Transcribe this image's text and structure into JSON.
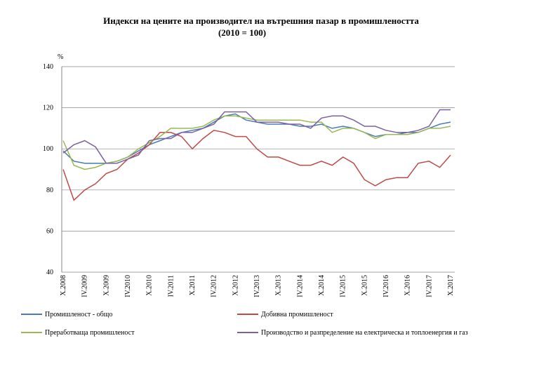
{
  "chart_data": {
    "type": "line",
    "title": "Индекси на цените на производител на вътрешния пазар в промишлеността",
    "subtitle": "(2010 = 100)",
    "y_label": "%",
    "categories": [
      "X.2008",
      null,
      "IV.2009",
      null,
      "X.2009",
      null,
      "IV.2010",
      null,
      "X.2010",
      null,
      "IV.2011",
      null,
      "X.2011",
      null,
      "IV.2012",
      null,
      "X.2012",
      null,
      "IV.2013",
      null,
      "X.2013",
      null,
      "IV.2014",
      null,
      "X.2014",
      null,
      "IV.2015",
      null,
      "X.2015",
      null,
      "IV.2016",
      null,
      "X.2016",
      null,
      "IV.2017",
      null,
      "X.2017"
    ],
    "series": [
      {
        "name": "Промишленост - общо",
        "color": "#4a7ab5",
        "values": [
          99,
          94,
          93,
          93,
          93,
          94,
          96,
          99,
          102,
          104,
          106,
          108,
          109,
          110,
          113,
          116,
          117,
          114,
          113,
          112,
          112,
          112,
          111,
          111,
          112,
          110,
          111,
          110,
          108,
          106,
          107,
          107,
          108,
          108,
          110,
          112,
          113
        ]
      },
      {
        "name": "Добивна промишленост",
        "color": "#be4b48",
        "values": [
          90,
          75,
          80,
          83,
          88,
          90,
          95,
          98,
          102,
          108,
          108,
          106,
          100,
          105,
          109,
          108,
          106,
          106,
          100,
          96,
          96,
          94,
          92,
          92,
          94,
          92,
          96,
          93,
          85,
          82,
          85,
          86,
          86,
          93,
          94,
          91,
          97
        ]
      },
      {
        "name": "Преработваща промишленост",
        "color": "#98b954",
        "values": [
          104,
          92,
          90,
          91,
          93,
          94,
          96,
          100,
          103,
          106,
          110,
          110,
          110,
          111,
          114,
          116,
          116,
          115,
          114,
          114,
          114,
          114,
          114,
          113,
          113,
          108,
          110,
          110,
          108,
          105,
          107,
          107,
          107,
          108,
          110,
          110,
          111
        ]
      },
      {
        "name": "Производство и разпределение на електрическа и топлоенергия и газ",
        "color": "#7d60a0",
        "values": [
          98,
          102,
          104,
          101,
          93,
          93,
          95,
          97,
          104,
          105,
          105,
          108,
          108,
          110,
          112,
          118,
          118,
          118,
          113,
          113,
          113,
          112,
          112,
          110,
          115,
          116,
          116,
          114,
          111,
          111,
          109,
          108,
          108,
          109,
          111,
          119,
          119
        ]
      }
    ],
    "ylim": [
      40,
      140
    ],
    "yticks": [
      40,
      60,
      80,
      100,
      120,
      140
    ],
    "grid": true
  }
}
